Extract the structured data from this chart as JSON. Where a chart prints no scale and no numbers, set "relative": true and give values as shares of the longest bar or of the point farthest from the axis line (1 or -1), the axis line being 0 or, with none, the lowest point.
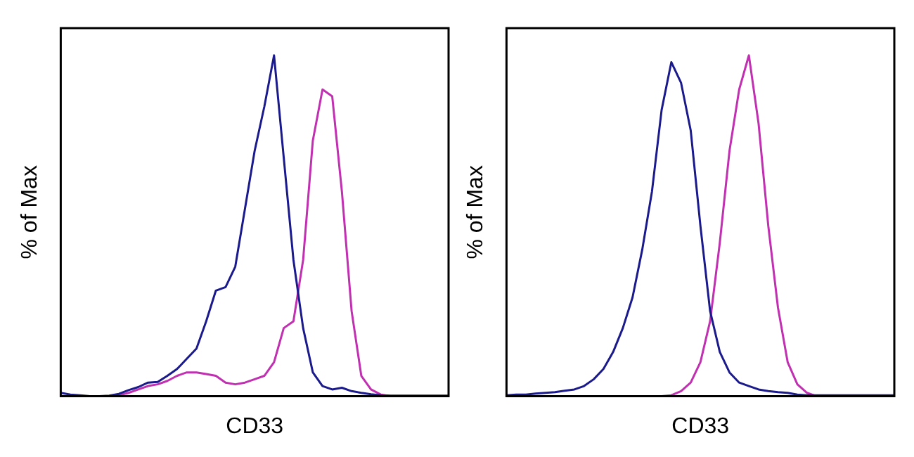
{
  "chart_data": [
    {
      "type": "line",
      "xlabel": "CD33",
      "ylabel": "% of Max",
      "relative": true,
      "tick_labels": false,
      "grid": false,
      "categories": [
        null,
        null,
        null,
        null,
        null,
        null,
        null,
        null,
        null,
        null,
        null,
        null,
        null,
        null,
        null,
        null,
        null,
        null,
        null,
        null,
        null,
        null,
        null,
        null,
        null,
        null,
        null,
        null,
        null,
        null,
        null,
        null,
        null,
        null,
        null,
        null,
        null,
        null,
        null,
        null,
        null
      ],
      "series": [
        {
          "color": "#1a1a8c",
          "values": [
            0.01,
            0.005,
            0.003,
            0,
            0,
            0.002,
            0.007,
            0.018,
            0.027,
            0.04,
            0.042,
            0.06,
            0.08,
            0.11,
            0.14,
            0.22,
            0.31,
            0.32,
            0.38,
            0.55,
            0.72,
            0.85,
            1,
            0.7,
            0.4,
            0.2,
            0.07,
            0.03,
            0.02,
            0.025,
            0.015,
            0.01,
            0.006,
            0.003,
            0.002,
            0.002,
            0.002,
            0.002,
            0.002,
            0.002,
            0.002
          ]
        },
        {
          "color": "#c030b0",
          "values": [
            null,
            null,
            null,
            null,
            null,
            0,
            0.003,
            0.01,
            0.02,
            0.03,
            0.035,
            0.045,
            0.06,
            0.07,
            0.07,
            0.065,
            0.06,
            0.04,
            0.035,
            0.04,
            0.05,
            0.06,
            0.1,
            0.2,
            0.22,
            0.4,
            0.75,
            0.9,
            0.88,
            0.6,
            0.25,
            0.06,
            0.02,
            0.005,
            0,
            0,
            null,
            null,
            null,
            null,
            null
          ]
        }
      ]
    },
    {
      "type": "line",
      "xlabel": "CD33",
      "ylabel": "% of Max",
      "relative": true,
      "tick_labels": false,
      "grid": false,
      "categories": [
        null,
        null,
        null,
        null,
        null,
        null,
        null,
        null,
        null,
        null,
        null,
        null,
        null,
        null,
        null,
        null,
        null,
        null,
        null,
        null,
        null,
        null,
        null,
        null,
        null,
        null,
        null,
        null,
        null,
        null,
        null,
        null,
        null,
        null,
        null,
        null,
        null,
        null,
        null,
        null,
        null
      ],
      "series": [
        {
          "color": "#1a1a8c",
          "values": [
            0.003,
            0.005,
            0.005,
            0.008,
            0.01,
            0.012,
            0.016,
            0.02,
            0.03,
            0.05,
            0.08,
            0.13,
            0.2,
            0.29,
            0.43,
            0.6,
            0.84,
            0.98,
            0.92,
            0.78,
            0.5,
            0.25,
            0.13,
            0.07,
            0.04,
            0.03,
            0.02,
            0.015,
            0.012,
            0.01,
            0.005,
            0.003,
            0.003,
            0.003,
            0.003,
            0.003,
            0.003,
            0.003,
            0.003,
            0.003,
            0.003
          ]
        },
        {
          "color": "#c030b0",
          "values": [
            null,
            null,
            null,
            null,
            null,
            null,
            null,
            null,
            null,
            null,
            null,
            null,
            null,
            null,
            null,
            null,
            0,
            0.003,
            0.015,
            0.04,
            0.1,
            0.22,
            0.45,
            0.72,
            0.9,
            1,
            0.8,
            0.5,
            0.26,
            0.1,
            0.035,
            0.01,
            0,
            null,
            null,
            null,
            null,
            null,
            null,
            null,
            null
          ]
        }
      ]
    }
  ]
}
